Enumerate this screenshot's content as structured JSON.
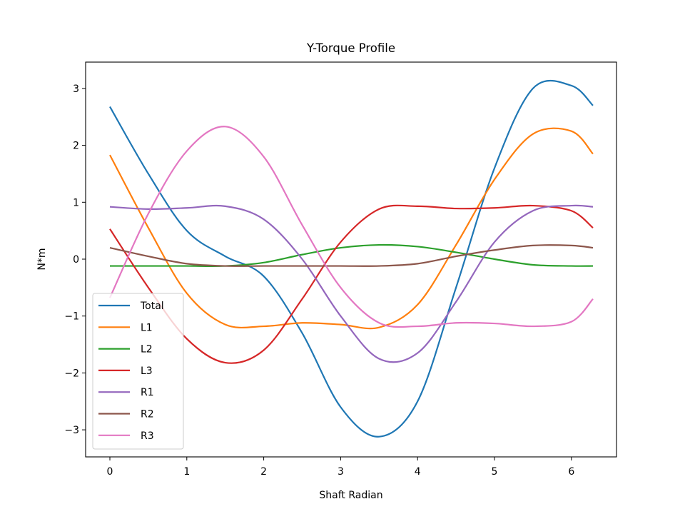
{
  "chart_data": {
    "type": "line",
    "title": "Y-Torque Profile",
    "xlabel": "Shaft Radian",
    "ylabel": "N*m",
    "xlim": [
      -0.31,
      6.59
    ],
    "ylim": [
      -3.46,
      3.46
    ],
    "xticks": [
      "0",
      "1",
      "2",
      "3",
      "4",
      "5",
      "6"
    ],
    "yticks": [
      "−3",
      "−2",
      "−1",
      "0",
      "1",
      "2",
      "3"
    ],
    "grid": false,
    "legend_position": "lower left",
    "x": [
      0,
      0.5,
      1.0,
      1.5,
      2.0,
      2.5,
      3.0,
      3.5,
      4.0,
      4.5,
      5.0,
      5.5,
      6.0,
      6.28
    ],
    "series": [
      {
        "name": "Total",
        "color": "#1f77b4",
        "values": [
          2.68,
          1.5,
          0.5,
          0.05,
          -0.3,
          -1.3,
          -2.6,
          -3.12,
          -2.5,
          -0.5,
          1.6,
          3.0,
          3.05,
          2.7
        ]
      },
      {
        "name": "L1",
        "color": "#ff7f0e",
        "values": [
          1.83,
          0.55,
          -0.6,
          -1.15,
          -1.18,
          -1.12,
          -1.15,
          -1.2,
          -0.8,
          0.25,
          1.4,
          2.2,
          2.25,
          1.85
        ]
      },
      {
        "name": "L2",
        "color": "#2ca02c",
        "values": [
          -0.12,
          -0.12,
          -0.12,
          -0.12,
          -0.06,
          0.08,
          0.2,
          0.25,
          0.22,
          0.12,
          0.0,
          -0.1,
          -0.12,
          -0.12
        ]
      },
      {
        "name": "L3",
        "color": "#d62728",
        "values": [
          0.53,
          -0.5,
          -1.4,
          -1.82,
          -1.6,
          -0.7,
          0.3,
          0.88,
          0.93,
          0.89,
          0.9,
          0.94,
          0.85,
          0.55
        ]
      },
      {
        "name": "R1",
        "color": "#9467bd",
        "values": [
          0.92,
          0.88,
          0.9,
          0.93,
          0.7,
          0.0,
          -1.0,
          -1.75,
          -1.65,
          -0.75,
          0.3,
          0.85,
          0.94,
          0.92
        ]
      },
      {
        "name": "R2",
        "color": "#8c564b",
        "values": [
          0.2,
          0.05,
          -0.08,
          -0.12,
          -0.12,
          -0.12,
          -0.12,
          -0.12,
          -0.08,
          0.05,
          0.16,
          0.24,
          0.24,
          0.2
        ]
      },
      {
        "name": "R3",
        "color": "#e377c2",
        "values": [
          -0.68,
          0.8,
          1.9,
          2.33,
          1.8,
          0.6,
          -0.5,
          -1.12,
          -1.18,
          -1.12,
          -1.13,
          -1.18,
          -1.1,
          -0.7
        ]
      }
    ]
  }
}
